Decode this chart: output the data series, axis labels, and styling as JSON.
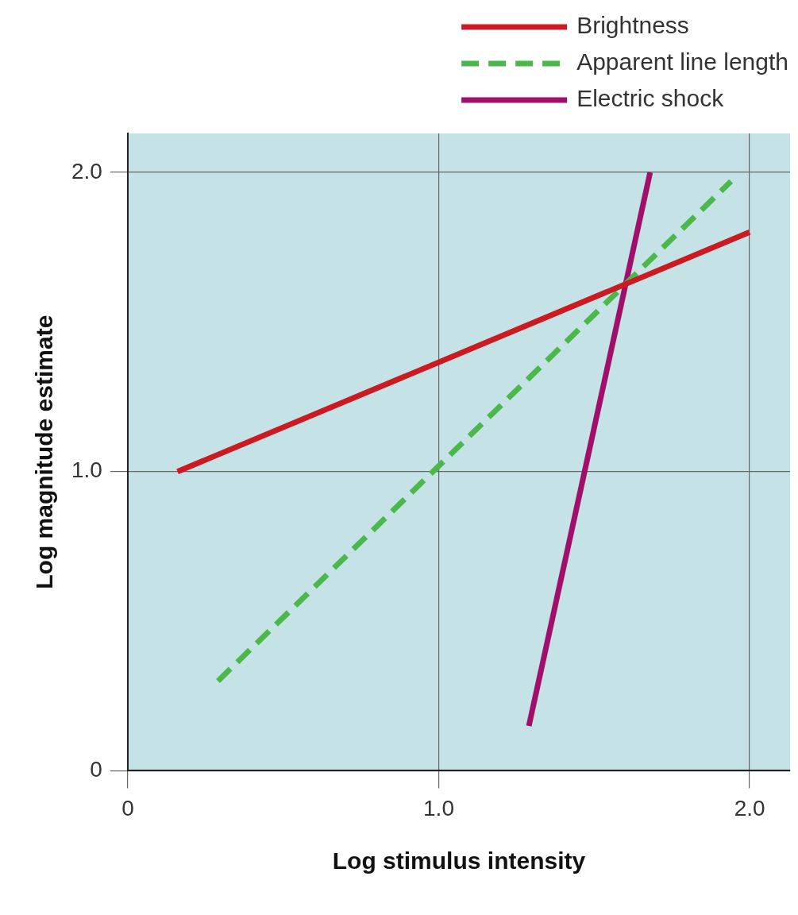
{
  "chart_data": {
    "type": "line",
    "xlabel": "Log stimulus intensity",
    "ylabel": "Log magnitude estimate",
    "xlim": [
      0,
      2.13
    ],
    "ylim": [
      0,
      2.13
    ],
    "xticks": [
      0,
      {
        "value": 1,
        "label": "1.0"
      },
      {
        "value": 2,
        "label": "2.0"
      }
    ],
    "yticks": [
      0,
      {
        "value": 1,
        "label": "1.0"
      },
      {
        "value": 2,
        "label": "2.0"
      }
    ],
    "grid": true,
    "legend": "top right",
    "marker": "none",
    "series": [
      {
        "name": "Brightness",
        "color": "#cc1a22",
        "line_style": "solid",
        "x": [
          0.16,
          2.0
        ],
        "values": [
          1.0,
          1.8
        ]
      },
      {
        "name": "Apparent line length",
        "color": "#4cb84c",
        "line_style": "dashed",
        "x": [
          0.29,
          1.94
        ],
        "values": [
          0.3,
          1.97
        ]
      },
      {
        "name": "Electric shock",
        "color": "#a0106a",
        "line_style": "solid",
        "x": [
          1.29,
          1.68
        ],
        "values": [
          0.15,
          2.0
        ]
      }
    ]
  }
}
